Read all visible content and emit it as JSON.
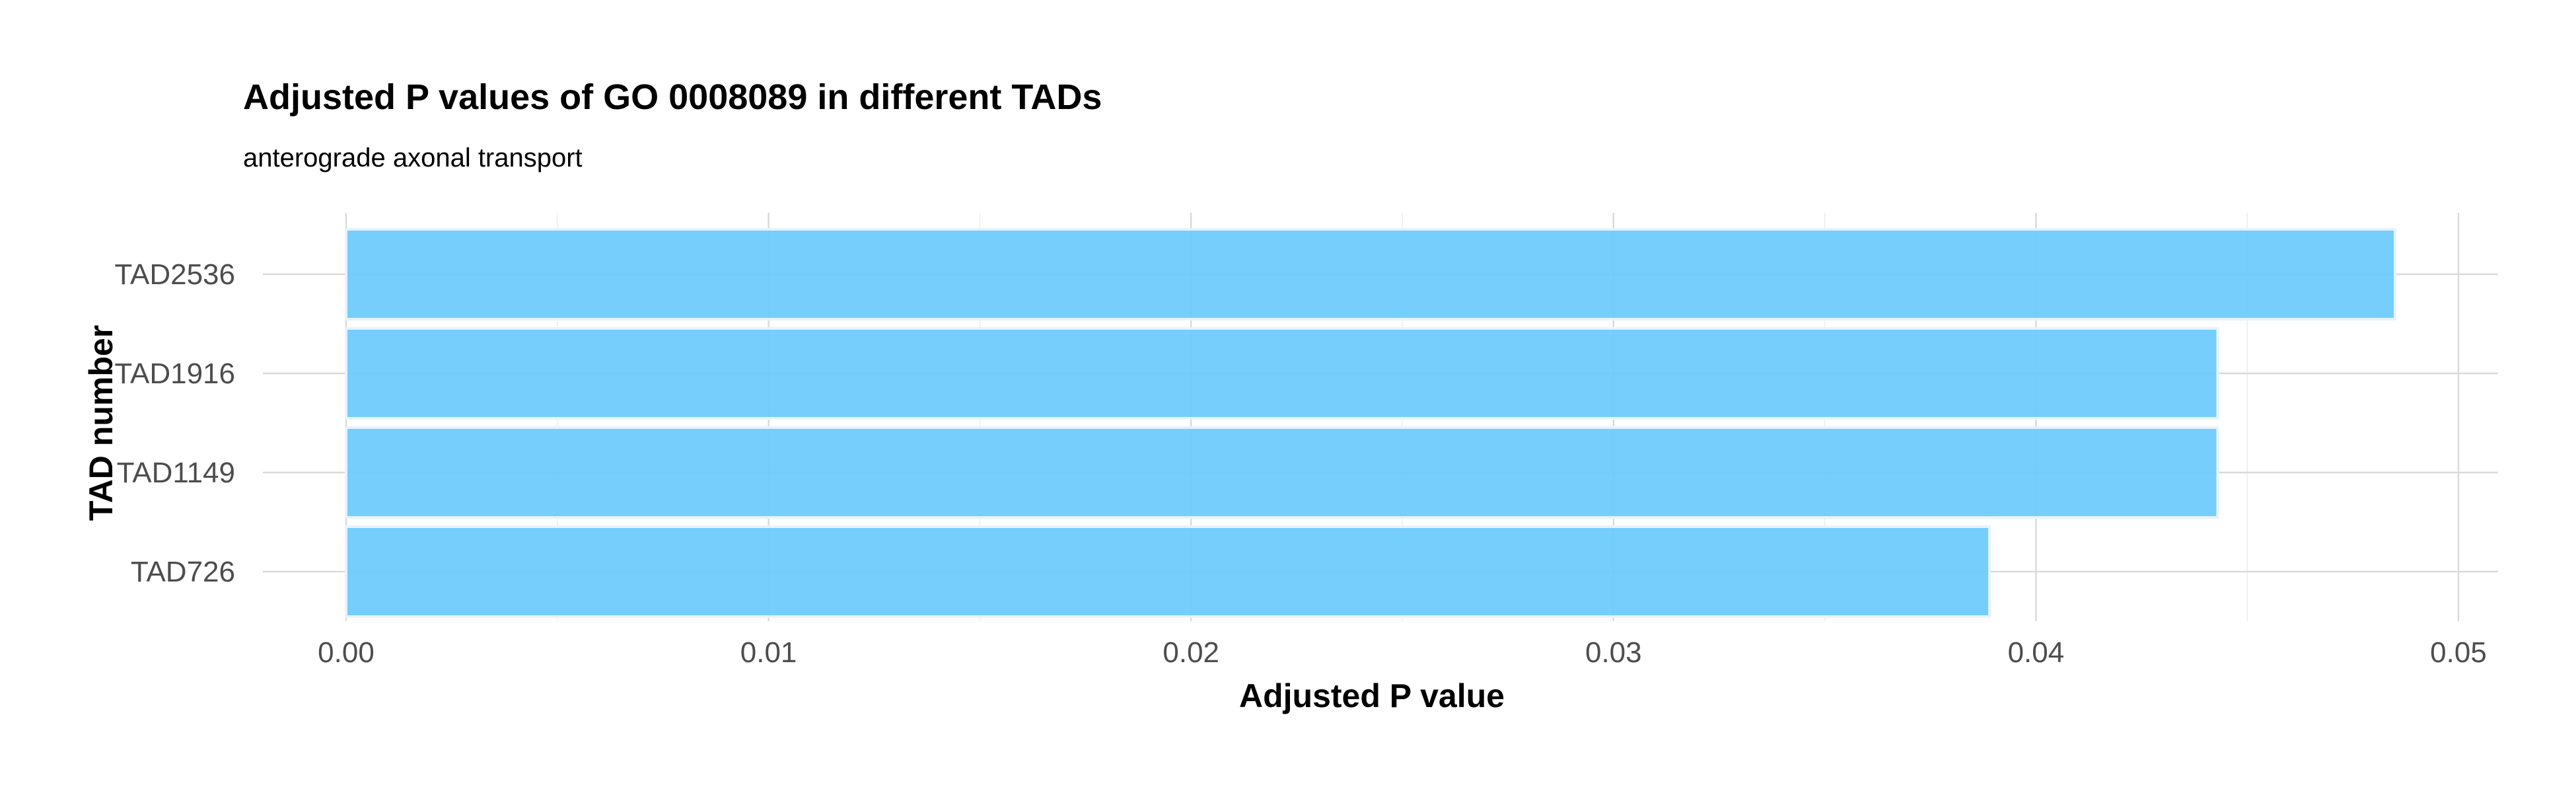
{
  "chart_data": {
    "type": "bar",
    "orientation": "horizontal",
    "title": "Adjusted P values of GO 0008089 in different TADs",
    "subtitle": "anterograde axonal transport",
    "xlabel": "Adjusted P value",
    "ylabel": "TAD number",
    "categories": [
      "TAD2536",
      "TAD1916",
      "TAD1149",
      "TAD726"
    ],
    "values": [
      0.0485,
      0.0443,
      0.0443,
      0.0389
    ],
    "xlim": [
      0,
      0.051
    ],
    "xticks": [
      0.0,
      0.01,
      0.02,
      0.03,
      0.04,
      0.05
    ],
    "xtick_labels": [
      "0.00",
      "0.01",
      "0.02",
      "0.03",
      "0.04",
      "0.05"
    ],
    "grid": true,
    "legend": "none",
    "bar_color": "#6ecbfb"
  }
}
